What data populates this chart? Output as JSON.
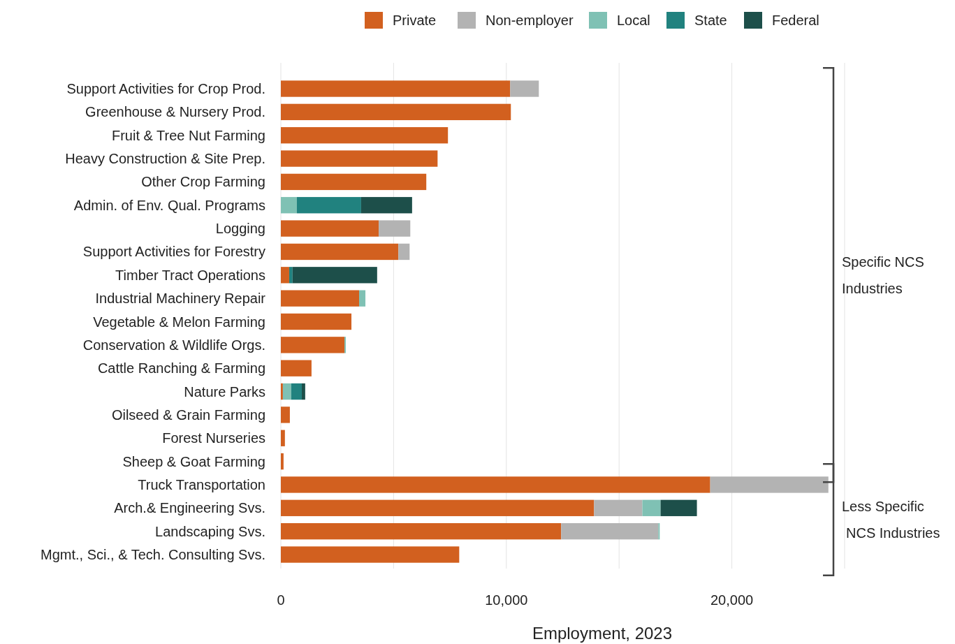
{
  "chart_data": {
    "type": "bar",
    "orientation": "horizontal",
    "stacked": true,
    "xlabel": "Employment, 2023",
    "categories": [
      "Support Activities for Crop Prod.",
      "Greenhouse & Nursery Prod.",
      "Fruit & Tree Nut Farming",
      "Heavy Construction & Site Prep.",
      "Other Crop Farming",
      "Admin. of Env. Qual. Programs",
      "Logging",
      "Support Activities for Forestry",
      "Timber Tract Operations",
      "Industrial Machinery Repair",
      "Vegetable & Melon Farming",
      "Conservation & Wildlife Orgs.",
      "Cattle Ranching & Farming",
      "Nature Parks",
      "Oilseed & Grain Farming",
      "Forest Nurseries",
      "Sheep & Goat Farming",
      "Truck Transportation",
      "Arch.& Engineering Svs.",
      "Landscaping Svs.",
      "Mgmt., Sci., & Tech. Consulting Svs."
    ],
    "series": [
      {
        "name": "Private",
        "color": "#d2601f",
        "values": [
          10170,
          10200,
          7410,
          6950,
          6450,
          0,
          4340,
          5210,
          370,
          3470,
          3130,
          2820,
          1360,
          90,
          400,
          180,
          120,
          19040,
          13890,
          12430,
          7910
        ]
      },
      {
        "name": "Non-employer",
        "color": "#b3b3b3",
        "values": [
          1270,
          0,
          0,
          0,
          0,
          0,
          1400,
          500,
          0,
          0,
          0,
          0,
          0,
          0,
          0,
          0,
          0,
          5240,
          2140,
          4310,
          0
        ]
      },
      {
        "name": "Local",
        "color": "#7fc1b4",
        "values": [
          0,
          0,
          0,
          0,
          0,
          710,
          0,
          0,
          0,
          280,
          0,
          60,
          0,
          370,
          0,
          0,
          0,
          0,
          810,
          60,
          0
        ]
      },
      {
        "name": "State",
        "color": "#21827f",
        "values": [
          0,
          0,
          0,
          0,
          0,
          2850,
          0,
          0,
          150,
          0,
          0,
          0,
          0,
          470,
          0,
          0,
          0,
          0,
          0,
          0,
          0
        ]
      },
      {
        "name": "Federal",
        "color": "#1d4f4a",
        "values": [
          0,
          0,
          0,
          0,
          0,
          2260,
          0,
          0,
          3750,
          0,
          0,
          0,
          0,
          150,
          0,
          0,
          0,
          0,
          1610,
          0,
          0
        ]
      }
    ],
    "xlim": [
      0,
      25000
    ],
    "xticks": [
      0,
      {
        "value": 5000,
        "label": null
      },
      {
        "value": 10000,
        "label": "10,000"
      },
      {
        "value": 15000,
        "label": null
      },
      {
        "value": 20000,
        "label": "20,000"
      },
      {
        "value": 25000,
        "label": null
      }
    ],
    "grid": "x",
    "legend": "top",
    "annotations": [
      "Specific NCS Industries",
      "Less Specific NCS Industries"
    ]
  }
}
